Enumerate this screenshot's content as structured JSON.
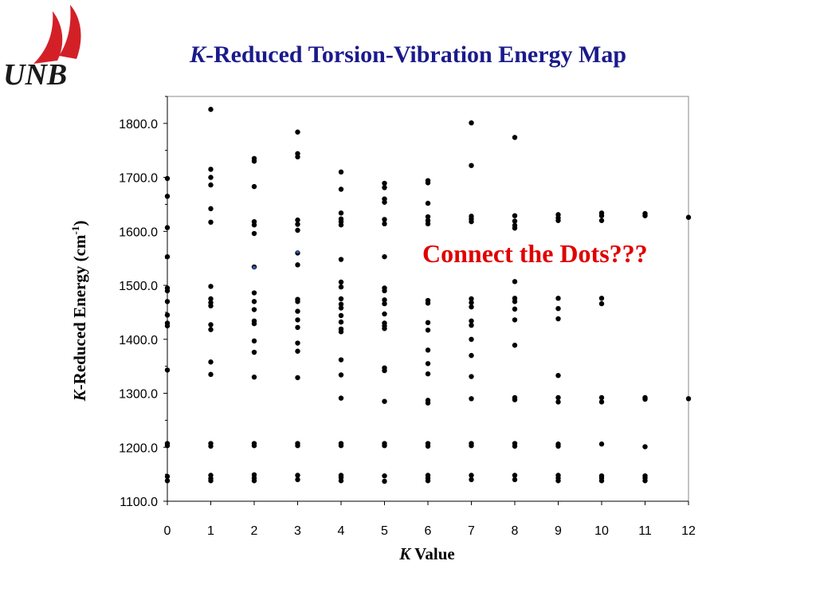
{
  "logo": {
    "text": "UNB",
    "sail_color": "#d32027",
    "text_color": "#1a1a1a"
  },
  "title": {
    "italic": "K",
    "rest": "-Reduced Torsion-Vibration Energy Map",
    "color": "#1a1a8c"
  },
  "annotation": {
    "text": "Connect the Dots???",
    "color": "#e00000"
  },
  "chart_data": {
    "type": "scatter",
    "title": "K-Reduced Torsion-Vibration Energy Map",
    "xlabel": "K Value",
    "ylabel": "K-Reduced Energy (cm-1)",
    "xlabel_parts": {
      "italic": "K",
      "rest": " Value"
    },
    "ylabel_parts": {
      "italic": "K",
      "rest": "-Reduced Energy (cm",
      "sup": "-1",
      "close": ")"
    },
    "xlim": [
      0,
      12
    ],
    "ylim": [
      1100,
      1850
    ],
    "xticks": [
      "0",
      "1",
      "2",
      "3",
      "4",
      "5",
      "6",
      "7",
      "8",
      "9",
      "10",
      "11",
      "12"
    ],
    "yticks": [
      "1100.0",
      "1200.0",
      "1300.0",
      "1400.0",
      "1500.0",
      "1600.0",
      "1700.0",
      "1800.0"
    ],
    "grid": false,
    "marker_color": "#000000",
    "highlight_color": "#3355aa",
    "points": [
      [
        0,
        1138
      ],
      [
        0,
        1146
      ],
      [
        0,
        1203
      ],
      [
        0,
        1207
      ],
      [
        0,
        1343
      ],
      [
        0,
        1425
      ],
      [
        0,
        1430
      ],
      [
        0,
        1445
      ],
      [
        0,
        1470
      ],
      [
        0,
        1490
      ],
      [
        0,
        1495
      ],
      [
        0,
        1553
      ],
      [
        0,
        1607
      ],
      [
        0,
        1665
      ],
      [
        0,
        1698
      ],
      [
        1,
        1138
      ],
      [
        1,
        1142
      ],
      [
        1,
        1148
      ],
      [
        1,
        1202
      ],
      [
        1,
        1207
      ],
      [
        1,
        1335
      ],
      [
        1,
        1358
      ],
      [
        1,
        1418
      ],
      [
        1,
        1427
      ],
      [
        1,
        1462
      ],
      [
        1,
        1468
      ],
      [
        1,
        1475
      ],
      [
        1,
        1498
      ],
      [
        1,
        1617
      ],
      [
        1,
        1642
      ],
      [
        1,
        1686
      ],
      [
        1,
        1700
      ],
      [
        1,
        1715
      ],
      [
        1,
        1826
      ],
      [
        2,
        1138
      ],
      [
        2,
        1143
      ],
      [
        2,
        1149
      ],
      [
        2,
        1203
      ],
      [
        2,
        1207
      ],
      [
        2,
        1330
      ],
      [
        2,
        1376
      ],
      [
        2,
        1397
      ],
      [
        2,
        1429
      ],
      [
        2,
        1434
      ],
      [
        2,
        1455
      ],
      [
        2,
        1470
      ],
      [
        2,
        1486
      ],
      [
        2,
        1534
      ],
      [
        2,
        1596
      ],
      [
        2,
        1612
      ],
      [
        2,
        1618
      ],
      [
        2,
        1683
      ],
      [
        2,
        1730
      ],
      [
        2,
        1735
      ],
      [
        3,
        1140
      ],
      [
        3,
        1148
      ],
      [
        3,
        1203
      ],
      [
        3,
        1207
      ],
      [
        3,
        1329
      ],
      [
        3,
        1378
      ],
      [
        3,
        1393
      ],
      [
        3,
        1422
      ],
      [
        3,
        1436
      ],
      [
        3,
        1452
      ],
      [
        3,
        1470
      ],
      [
        3,
        1474
      ],
      [
        3,
        1538
      ],
      [
        3,
        1560
      ],
      [
        3,
        1602
      ],
      [
        3,
        1613
      ],
      [
        3,
        1621
      ],
      [
        3,
        1738
      ],
      [
        3,
        1744
      ],
      [
        3,
        1784
      ],
      [
        4,
        1138
      ],
      [
        4,
        1144
      ],
      [
        4,
        1148
      ],
      [
        4,
        1203
      ],
      [
        4,
        1207
      ],
      [
        4,
        1291
      ],
      [
        4,
        1334
      ],
      [
        4,
        1362
      ],
      [
        4,
        1414
      ],
      [
        4,
        1419
      ],
      [
        4,
        1432
      ],
      [
        4,
        1444
      ],
      [
        4,
        1458
      ],
      [
        4,
        1465
      ],
      [
        4,
        1475
      ],
      [
        4,
        1497
      ],
      [
        4,
        1506
      ],
      [
        4,
        1548
      ],
      [
        4,
        1612
      ],
      [
        4,
        1618
      ],
      [
        4,
        1623
      ],
      [
        4,
        1634
      ],
      [
        4,
        1678
      ],
      [
        4,
        1710
      ],
      [
        5,
        1137
      ],
      [
        5,
        1147
      ],
      [
        5,
        1203
      ],
      [
        5,
        1207
      ],
      [
        5,
        1285
      ],
      [
        5,
        1342
      ],
      [
        5,
        1347
      ],
      [
        5,
        1420
      ],
      [
        5,
        1425
      ],
      [
        5,
        1430
      ],
      [
        5,
        1447
      ],
      [
        5,
        1466
      ],
      [
        5,
        1473
      ],
      [
        5,
        1490
      ],
      [
        5,
        1495
      ],
      [
        5,
        1553
      ],
      [
        5,
        1614
      ],
      [
        5,
        1622
      ],
      [
        5,
        1654
      ],
      [
        5,
        1660
      ],
      [
        5,
        1681
      ],
      [
        5,
        1689
      ],
      [
        6,
        1138
      ],
      [
        6,
        1143
      ],
      [
        6,
        1148
      ],
      [
        6,
        1202
      ],
      [
        6,
        1207
      ],
      [
        6,
        1282
      ],
      [
        6,
        1287
      ],
      [
        6,
        1336
      ],
      [
        6,
        1355
      ],
      [
        6,
        1380
      ],
      [
        6,
        1417
      ],
      [
        6,
        1431
      ],
      [
        6,
        1467
      ],
      [
        6,
        1472
      ],
      [
        6,
        1614
      ],
      [
        6,
        1620
      ],
      [
        6,
        1627
      ],
      [
        6,
        1652
      ],
      [
        6,
        1690
      ],
      [
        6,
        1694
      ],
      [
        7,
        1140
      ],
      [
        7,
        1148
      ],
      [
        7,
        1203
      ],
      [
        7,
        1207
      ],
      [
        7,
        1290
      ],
      [
        7,
        1331
      ],
      [
        7,
        1370
      ],
      [
        7,
        1400
      ],
      [
        7,
        1426
      ],
      [
        7,
        1434
      ],
      [
        7,
        1460
      ],
      [
        7,
        1468
      ],
      [
        7,
        1475
      ],
      [
        7,
        1618
      ],
      [
        7,
        1623
      ],
      [
        7,
        1628
      ],
      [
        7,
        1722
      ],
      [
        7,
        1801
      ],
      [
        8,
        1140
      ],
      [
        8,
        1148
      ],
      [
        8,
        1202
      ],
      [
        8,
        1207
      ],
      [
        8,
        1288
      ],
      [
        8,
        1292
      ],
      [
        8,
        1389
      ],
      [
        8,
        1436
      ],
      [
        8,
        1456
      ],
      [
        8,
        1470
      ],
      [
        8,
        1476
      ],
      [
        8,
        1507
      ],
      [
        8,
        1606
      ],
      [
        8,
        1611
      ],
      [
        8,
        1619
      ],
      [
        8,
        1629
      ],
      [
        8,
        1774
      ],
      [
        9,
        1138
      ],
      [
        9,
        1143
      ],
      [
        9,
        1148
      ],
      [
        9,
        1202
      ],
      [
        9,
        1206
      ],
      [
        9,
        1284
      ],
      [
        9,
        1292
      ],
      [
        9,
        1333
      ],
      [
        9,
        1438
      ],
      [
        9,
        1457
      ],
      [
        9,
        1476
      ],
      [
        9,
        1620
      ],
      [
        9,
        1625
      ],
      [
        9,
        1631
      ],
      [
        10,
        1138
      ],
      [
        10,
        1143
      ],
      [
        10,
        1147
      ],
      [
        10,
        1206
      ],
      [
        10,
        1284
      ],
      [
        10,
        1292
      ],
      [
        10,
        1466
      ],
      [
        10,
        1476
      ],
      [
        10,
        1620
      ],
      [
        10,
        1629
      ],
      [
        10,
        1634
      ],
      [
        11,
        1138
      ],
      [
        11,
        1143
      ],
      [
        11,
        1147
      ],
      [
        11,
        1201
      ],
      [
        11,
        1289
      ],
      [
        11,
        1292
      ],
      [
        11,
        1629
      ],
      [
        11,
        1633
      ],
      [
        12,
        1290
      ],
      [
        12,
        1626
      ]
    ],
    "highlighted_points": [
      [
        2,
        1533
      ],
      [
        3,
        1562
      ]
    ]
  }
}
